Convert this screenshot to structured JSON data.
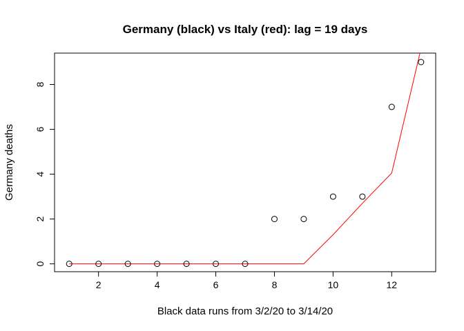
{
  "chart_data": {
    "type": "scatter",
    "title": "Germany (black) vs Italy (red): lag = 19 days",
    "xlabel": "Black data runs from  3/2/20  to  3/14/20",
    "ylabel": "Germany deaths",
    "xlim": [
      0.5,
      13.5
    ],
    "ylim": [
      -0.35,
      9.4
    ],
    "x_ticks": [
      2,
      4,
      6,
      8,
      10,
      12
    ],
    "y_ticks": [
      0,
      2,
      4,
      6,
      8
    ],
    "grid": false,
    "series": [
      {
        "type": "scatter",
        "color": "#000000",
        "marker": "open-circle",
        "x": [
          1,
          2,
          3,
          4,
          5,
          6,
          7,
          8,
          9,
          10,
          11,
          12,
          13
        ],
        "y": [
          0,
          0,
          0,
          0,
          0,
          0,
          0,
          2,
          2,
          3,
          3,
          7,
          9
        ]
      },
      {
        "type": "line",
        "color": "#ff0000",
        "x": [
          1,
          2,
          3,
          4,
          5,
          6,
          7,
          8,
          9,
          10,
          11,
          12,
          13
        ],
        "y": [
          0,
          0,
          0,
          0,
          0,
          0,
          0,
          0,
          0,
          1.3,
          2.7,
          4.05,
          9.6
        ]
      }
    ]
  }
}
